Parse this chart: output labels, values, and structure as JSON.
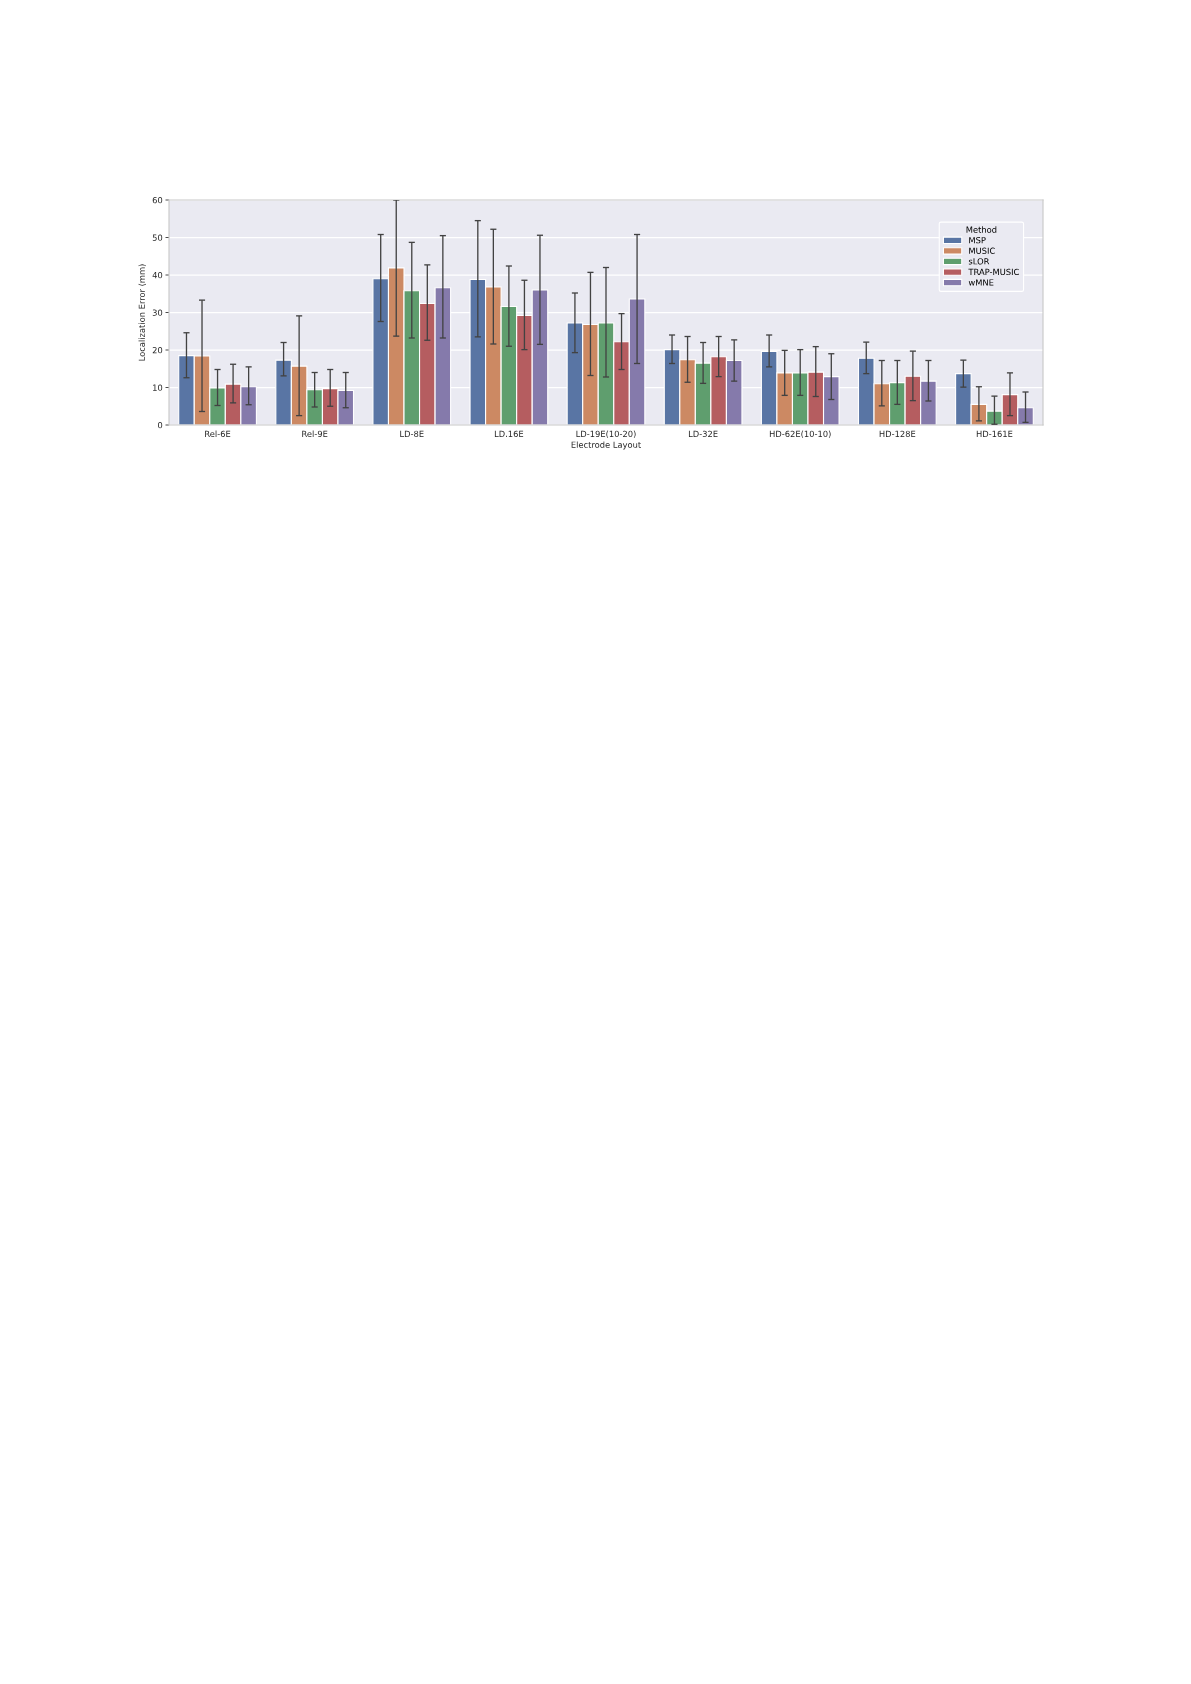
{
  "chart_data": {
    "type": "bar",
    "xlabel": "Electrode Layout",
    "ylabel": "Localization Error (mm)",
    "legend_title": "Method",
    "categories": [
      "Rel-6E",
      "Rel-9E",
      "LD-8E",
      "LD.16E",
      "LD-19E(10-20)",
      "LD-32E",
      "HD-62E(10-10)",
      "HD-128E",
      "HD-161E"
    ],
    "series": [
      {
        "name": "MSP",
        "color": "#5975a4",
        "values": [
          18.5,
          17.3,
          39.0,
          38.8,
          27.2,
          20.1,
          19.6,
          17.8,
          13.7
        ],
        "errors": [
          [
            12.6,
            24.6
          ],
          [
            13.1,
            22.0
          ],
          [
            27.6,
            50.8
          ],
          [
            23.5,
            54.5
          ],
          [
            19.3,
            35.2
          ],
          [
            16.4,
            24.0
          ],
          [
            15.5,
            24.0
          ],
          [
            13.7,
            22.1
          ],
          [
            10.1,
            17.3
          ]
        ]
      },
      {
        "name": "MUSIC",
        "color": "#cc8963",
        "values": [
          18.4,
          15.7,
          41.9,
          36.8,
          26.8,
          17.4,
          13.9,
          11.0,
          5.5
        ],
        "errors": [
          [
            3.6,
            33.3
          ],
          [
            2.5,
            29.1
          ],
          [
            23.7,
            60
          ],
          [
            21.6,
            52.2
          ],
          [
            13.2,
            40.7
          ],
          [
            11.4,
            23.6
          ],
          [
            7.9,
            19.9
          ],
          [
            5.1,
            17.2
          ],
          [
            1.1,
            10.2
          ]
        ]
      },
      {
        "name": "sLOR",
        "color": "#5f9e6e",
        "values": [
          9.9,
          9.4,
          35.8,
          31.6,
          27.2,
          16.5,
          13.9,
          11.3,
          3.7
        ],
        "errors": [
          [
            5.2,
            14.8
          ],
          [
            4.8,
            14.0
          ],
          [
            23.2,
            48.7
          ],
          [
            21.0,
            42.4
          ],
          [
            12.8,
            42.0
          ],
          [
            11.1,
            22.0
          ],
          [
            7.9,
            20.1
          ],
          [
            5.5,
            17.2
          ],
          [
            0.2,
            7.7
          ]
        ]
      },
      {
        "name": "TRAP-MUSIC",
        "color": "#b55d60",
        "values": [
          10.9,
          9.7,
          32.4,
          29.2,
          22.2,
          18.2,
          14.1,
          13.0,
          8.1
        ],
        "errors": [
          [
            5.9,
            16.2
          ],
          [
            5.0,
            14.8
          ],
          [
            22.6,
            42.7
          ],
          [
            20.1,
            38.6
          ],
          [
            14.8,
            29.7
          ],
          [
            12.9,
            23.6
          ],
          [
            7.6,
            20.9
          ],
          [
            6.5,
            19.7
          ],
          [
            2.5,
            13.9
          ]
        ]
      },
      {
        "name": "wMNE",
        "color": "#857aab",
        "values": [
          10.2,
          9.2,
          36.6,
          36.0,
          33.6,
          17.2,
          12.9,
          11.7,
          4.6
        ],
        "errors": [
          [
            5.4,
            15.5
          ],
          [
            4.6,
            14.0
          ],
          [
            23.2,
            50.5
          ],
          [
            21.5,
            50.6
          ],
          [
            16.4,
            50.8
          ],
          [
            11.7,
            22.7
          ],
          [
            6.8,
            19.0
          ],
          [
            6.4,
            17.2
          ],
          [
            0.7,
            8.8
          ]
        ]
      }
    ],
    "ylim": [
      0,
      60
    ],
    "yticks": [
      0,
      10,
      20,
      30,
      40,
      50,
      60
    ],
    "grid": "y",
    "legend": "top right"
  }
}
